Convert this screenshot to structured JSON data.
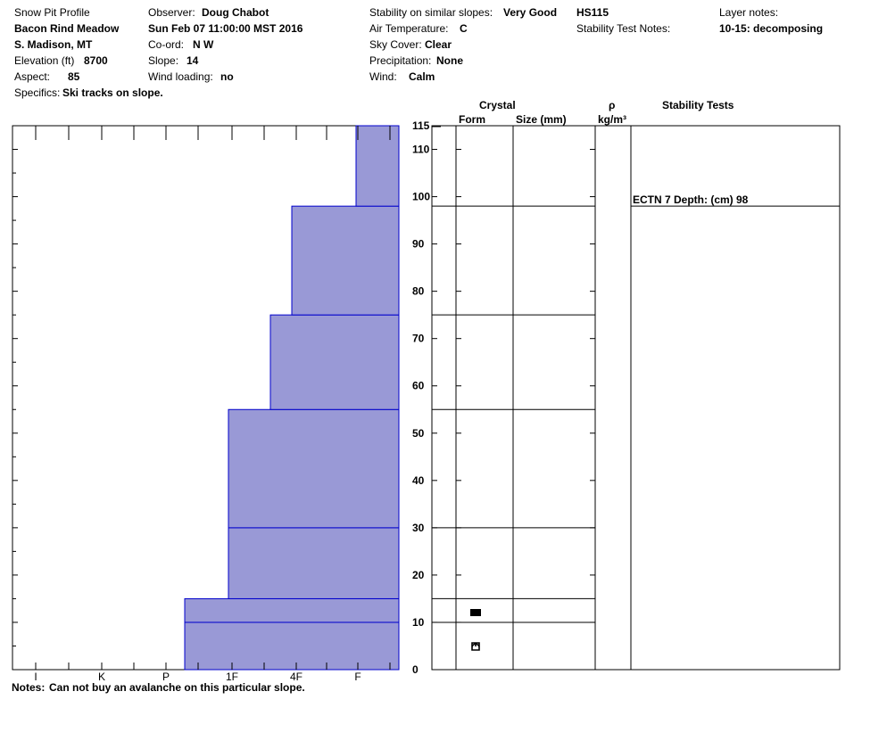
{
  "header": {
    "col1": {
      "profile_title": "Snow Pit Profile",
      "location": "Bacon Rind Meadow",
      "region": "S. Madison, MT",
      "elevation_label": "Elevation (ft)",
      "elevation_value": "8700",
      "aspect_label": "Aspect:",
      "aspect_value": "85",
      "specifics_label": "Specifics:",
      "specifics_value": "Ski tracks on slope."
    },
    "col2": {
      "observer_label": "Observer:",
      "observer_value": "Doug Chabot",
      "datetime": "Sun Feb 07 11:00:00 MST 2016",
      "coord_label": "Co-ord:",
      "coord_value": "N  W",
      "slope_label": "Slope:",
      "slope_value": "14",
      "wind_loading_label": "Wind loading:",
      "wind_loading_value": "no"
    },
    "col3": {
      "stability_label": "Stability on similar slopes:",
      "stability_value": "Very Good",
      "air_temp_label": "Air Temperature:",
      "air_temp_value": "C",
      "sky_label": "Sky Cover:",
      "sky_value": "Clear",
      "precip_label": "Precipitation:",
      "precip_value": "None",
      "wind_label": "Wind:",
      "wind_value": "Calm"
    },
    "col4": {
      "hs": "HS115",
      "stability_test_notes_label": "Stability Test Notes:"
    },
    "col5": {
      "layer_notes_label": "Layer notes:",
      "layer_notes_value": "10-15: decomposing"
    }
  },
  "table_headers": {
    "crystal": "Crystal",
    "form": "Form",
    "size": "Size (mm)",
    "rho": "ρ",
    "density_unit": "kg/m³",
    "stability_tests": "Stability Tests"
  },
  "stability_test_entry": {
    "text": "ECTN 7   Depth: (cm) 98",
    "depth": 98
  },
  "notes": {
    "label": "Notes:",
    "value": "Can not buy an avalanche on this particular slope."
  },
  "colors": {
    "layer_fill": "#9999d6",
    "layer_stroke": "#0000cc"
  },
  "icons": {
    "form_at_12": "facet-square-icon",
    "form_at_5": "depth-hoar-icon"
  },
  "chart_data": {
    "type": "bar",
    "orientation": "horizontal-profile",
    "y_range": [
      0,
      115
    ],
    "y_ticks": [
      0,
      10,
      20,
      30,
      40,
      50,
      60,
      70,
      80,
      90,
      100,
      110,
      115
    ],
    "hardness_scale": [
      "I",
      "K",
      "P",
      "1F",
      "4F",
      "F"
    ],
    "layers": [
      {
        "bottom": 0,
        "top": 10,
        "hardness": "1F+"
      },
      {
        "bottom": 10,
        "top": 15,
        "hardness": "1F+"
      },
      {
        "bottom": 15,
        "top": 30,
        "hardness": "4F+"
      },
      {
        "bottom": 30,
        "top": 55,
        "hardness": "4F+"
      },
      {
        "bottom": 55,
        "top": 75,
        "hardness": "4F"
      },
      {
        "bottom": 75,
        "top": 98,
        "hardness": "F+"
      },
      {
        "bottom": 98,
        "top": 115,
        "hardness": "F-"
      }
    ],
    "layer_boundaries": [
      10,
      15,
      30,
      55,
      75,
      98
    ]
  }
}
